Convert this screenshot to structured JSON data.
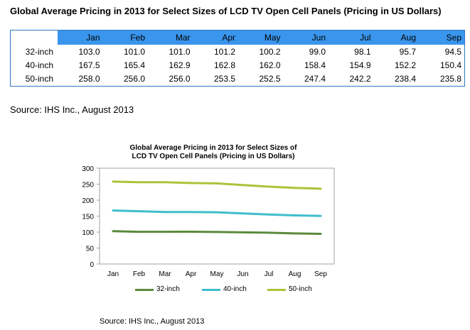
{
  "title": "Global Average Pricing in 2013 for Select Sizes of LCD TV Open Cell Panels (Pricing in US Dollars)",
  "table": {
    "months": [
      "Jan",
      "Feb",
      "Mar",
      "Apr",
      "May",
      "Jun",
      "Jul",
      "Aug",
      "Sep"
    ],
    "rows": [
      {
        "label": "32-inch",
        "values": [
          "103.0",
          "101.0",
          "101.0",
          "101.2",
          "100.2",
          "99.0",
          "98.1",
          "95.7",
          "94.5"
        ]
      },
      {
        "label": "40-inch",
        "values": [
          "167.5",
          "165.4",
          "162.9",
          "162.8",
          "162.0",
          "158.4",
          "154.9",
          "152.2",
          "150.4"
        ]
      },
      {
        "label": "50-inch",
        "values": [
          "258.0",
          "256.0",
          "256.0",
          "253.5",
          "252.5",
          "247.4",
          "242.2",
          "238.4",
          "235.8"
        ]
      }
    ]
  },
  "source_text": "Source: IHS Inc., August 2013",
  "chart_data": {
    "type": "line",
    "title_line1": "Global Average Pricing  in 2013 for Select Sizes of",
    "title_line2": "LCD TV Open Cell Panels (Pricing in US Dollars)",
    "categories": [
      "Jan",
      "Feb",
      "Mar",
      "Apr",
      "May",
      "Jun",
      "Jul",
      "Aug",
      "Sep"
    ],
    "ylim": [
      0,
      300
    ],
    "yticks": [
      0,
      50,
      100,
      150,
      200,
      250,
      300
    ],
    "legend_position": "bottom",
    "series": [
      {
        "name": "32-inch",
        "color": "#5b8a3c",
        "values": [
          103.0,
          101.0,
          101.0,
          101.2,
          100.2,
          99.0,
          98.1,
          95.7,
          94.5
        ]
      },
      {
        "name": "40-inch",
        "color": "#3fbdcc",
        "values": [
          167.5,
          165.4,
          162.9,
          162.8,
          162.0,
          158.4,
          154.9,
          152.2,
          150.4
        ]
      },
      {
        "name": "50-inch",
        "color": "#a9c43a",
        "values": [
          258.0,
          256.0,
          256.0,
          253.5,
          252.5,
          247.4,
          242.2,
          238.4,
          235.8
        ]
      }
    ]
  },
  "chart_source_text": "Source: IHS Inc., August 2013"
}
